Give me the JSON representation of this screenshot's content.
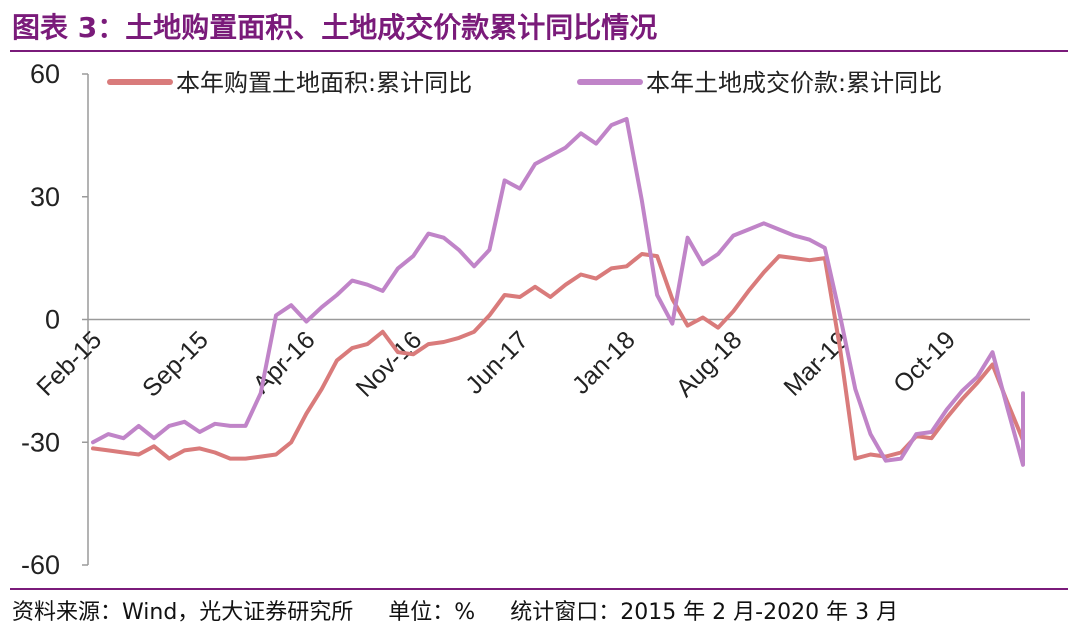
{
  "header": {
    "title": "图表 3：土地购置面积、土地成交价款累计同比情况"
  },
  "footer": {
    "source": "资料来源：Wind，光大证券研究所",
    "unit": "单位：%",
    "window": "统计窗口：2015 年 2 月-2020 年 3 月"
  },
  "colors": {
    "series_1": "#d97b7b",
    "series_2": "#c084c8",
    "accent": "#7a1b7a"
  },
  "chart_data": {
    "type": "line",
    "title": "",
    "xlabel": "",
    "ylabel": "",
    "ylim": [
      -60,
      60
    ],
    "yticks": [
      60,
      30,
      0,
      -30,
      -60
    ],
    "x_range": [
      "2015-02",
      "2020-03"
    ],
    "xticks": [
      "Feb-15",
      "Sep-15",
      "Apr-16",
      "Nov-16",
      "Jun-17",
      "Jan-18",
      "Aug-18",
      "Mar-19",
      "Oct-19"
    ],
    "legend": "top",
    "grid": false,
    "series": [
      {
        "name": "本年购置土地面积:累计同比",
        "color": "#d97b7b",
        "points": [
          [
            "2015-02",
            -31.5
          ],
          [
            "2015-03",
            -32.0
          ],
          [
            "2015-04",
            -32.5
          ],
          [
            "2015-05",
            -33.0
          ],
          [
            "2015-06",
            -31.0
          ],
          [
            "2015-07",
            -34.0
          ],
          [
            "2015-08",
            -32.0
          ],
          [
            "2015-09",
            -31.5
          ],
          [
            "2015-10",
            -32.5
          ],
          [
            "2015-11",
            -34.0
          ],
          [
            "2015-12",
            -34.0
          ],
          [
            "2016-01",
            -33.5
          ],
          [
            "2016-02",
            -33.0
          ],
          [
            "2016-03",
            -30.0
          ],
          [
            "2016-04",
            -23.0
          ],
          [
            "2016-05",
            -17.0
          ],
          [
            "2016-06",
            -10.0
          ],
          [
            "2016-07",
            -7.0
          ],
          [
            "2016-08",
            -6.0
          ],
          [
            "2016-09",
            -3.0
          ],
          [
            "2016-10",
            -8.0
          ],
          [
            "2016-11",
            -8.5
          ],
          [
            "2016-12",
            -6.0
          ],
          [
            "2017-01",
            -5.5
          ],
          [
            "2017-02",
            -4.5
          ],
          [
            "2017-03",
            -3.0
          ],
          [
            "2017-04",
            1.0
          ],
          [
            "2017-05",
            6.0
          ],
          [
            "2017-06",
            5.5
          ],
          [
            "2017-07",
            8.0
          ],
          [
            "2017-08",
            5.5
          ],
          [
            "2017-09",
            8.5
          ],
          [
            "2017-10",
            11.0
          ],
          [
            "2017-11",
            10.0
          ],
          [
            "2017-12",
            12.5
          ],
          [
            "2018-01",
            13.0
          ],
          [
            "2018-02",
            16.0
          ],
          [
            "2018-03",
            15.5
          ],
          [
            "2018-04",
            5.0
          ],
          [
            "2018-05",
            -1.5
          ],
          [
            "2018-06",
            0.5
          ],
          [
            "2018-07",
            -2.0
          ],
          [
            "2018-08",
            2.0
          ],
          [
            "2018-09",
            7.0
          ],
          [
            "2018-10",
            11.5
          ],
          [
            "2018-11",
            15.5
          ],
          [
            "2018-12",
            15.0
          ],
          [
            "2019-01",
            14.5
          ],
          [
            "2019-02",
            15.0
          ],
          [
            "2019-03",
            -7.0
          ],
          [
            "2019-04",
            -34.0
          ],
          [
            "2019-05",
            -33.0
          ],
          [
            "2019-06",
            -33.5
          ],
          [
            "2019-07",
            -32.5
          ],
          [
            "2019-08",
            -28.5
          ],
          [
            "2019-09",
            -29.0
          ],
          [
            "2019-10",
            -24.0
          ],
          [
            "2019-11",
            -19.5
          ],
          [
            "2019-12",
            -15.5
          ],
          [
            "2020-01",
            -11.0
          ],
          [
            "2020-02",
            -20.5
          ],
          [
            "2020-03",
            -29.5
          ],
          [
            "2020-03",
            -22.5
          ]
        ]
      },
      {
        "name": "本年土地成交价款:累计同比",
        "color": "#c084c8",
        "points": [
          [
            "2015-02",
            -30.0
          ],
          [
            "2015-03",
            -28.0
          ],
          [
            "2015-04",
            -29.0
          ],
          [
            "2015-05",
            -26.0
          ],
          [
            "2015-06",
            -29.0
          ],
          [
            "2015-07",
            -26.0
          ],
          [
            "2015-08",
            -25.0
          ],
          [
            "2015-09",
            -27.5
          ],
          [
            "2015-10",
            -25.5
          ],
          [
            "2015-11",
            -26.0
          ],
          [
            "2015-12",
            -26.0
          ],
          [
            "2016-01",
            -18.0
          ],
          [
            "2016-02",
            1.0
          ],
          [
            "2016-03",
            3.5
          ],
          [
            "2016-04",
            -0.5
          ],
          [
            "2016-05",
            3.0
          ],
          [
            "2016-06",
            6.0
          ],
          [
            "2016-07",
            9.5
          ],
          [
            "2016-08",
            8.5
          ],
          [
            "2016-09",
            7.0
          ],
          [
            "2016-10",
            12.5
          ],
          [
            "2016-11",
            15.5
          ],
          [
            "2016-12",
            21.0
          ],
          [
            "2017-01",
            20.0
          ],
          [
            "2017-02",
            17.0
          ],
          [
            "2017-03",
            13.0
          ],
          [
            "2017-04",
            17.0
          ],
          [
            "2017-05",
            34.0
          ],
          [
            "2017-06",
            32.0
          ],
          [
            "2017-07",
            38.0
          ],
          [
            "2017-08",
            40.0
          ],
          [
            "2017-09",
            42.0
          ],
          [
            "2017-10",
            45.5
          ],
          [
            "2017-11",
            43.0
          ],
          [
            "2017-12",
            47.5
          ],
          [
            "2018-01",
            49.0
          ],
          [
            "2018-02",
            29.0
          ],
          [
            "2018-03",
            6.0
          ],
          [
            "2018-04",
            -1.0
          ],
          [
            "2018-05",
            20.0
          ],
          [
            "2018-06",
            13.5
          ],
          [
            "2018-07",
            16.0
          ],
          [
            "2018-08",
            20.5
          ],
          [
            "2018-09",
            22.0
          ],
          [
            "2018-10",
            23.5
          ],
          [
            "2018-11",
            22.0
          ],
          [
            "2018-12",
            20.5
          ],
          [
            "2019-01",
            19.5
          ],
          [
            "2019-02",
            17.5
          ],
          [
            "2019-03",
            1.0
          ],
          [
            "2019-04",
            -17.0
          ],
          [
            "2019-05",
            -28.0
          ],
          [
            "2019-06",
            -34.5
          ],
          [
            "2019-07",
            -34.0
          ],
          [
            "2019-08",
            -28.0
          ],
          [
            "2019-09",
            -27.5
          ],
          [
            "2019-10",
            -22.0
          ],
          [
            "2019-11",
            -17.5
          ],
          [
            "2019-12",
            -14.0
          ],
          [
            "2020-01",
            -8.0
          ],
          [
            "2020-02",
            -22.0
          ],
          [
            "2020-03",
            -35.5
          ],
          [
            "2020-03",
            -18.0
          ]
        ]
      }
    ]
  }
}
